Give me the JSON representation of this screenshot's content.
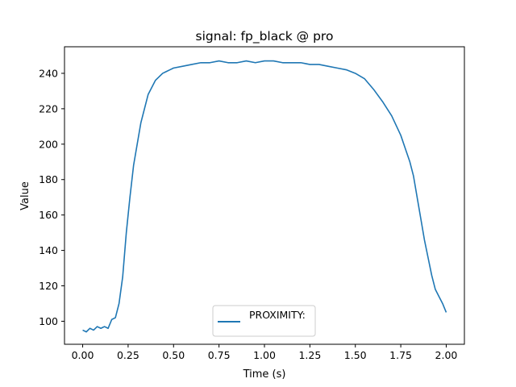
{
  "chart_data": {
    "type": "line",
    "title": "signal: fp_black @ pro",
    "xlabel": "Time (s)",
    "ylabel": "Value",
    "xlim": [
      -0.1,
      2.1
    ],
    "ylim": [
      87,
      255
    ],
    "xticks": [
      "0.00",
      "0.25",
      "0.50",
      "0.75",
      "1.00",
      "1.25",
      "1.50",
      "1.75",
      "2.00"
    ],
    "yticks": [
      "100",
      "120",
      "140",
      "160",
      "180",
      "200",
      "220",
      "240"
    ],
    "grid": false,
    "legend_position": "lower center",
    "series": [
      {
        "name": "PROXIMITY:",
        "color": "#1f77b4",
        "x": [
          0.0,
          0.02,
          0.04,
          0.06,
          0.08,
          0.1,
          0.12,
          0.14,
          0.16,
          0.18,
          0.2,
          0.22,
          0.24,
          0.26,
          0.28,
          0.3,
          0.32,
          0.34,
          0.36,
          0.38,
          0.4,
          0.42,
          0.44,
          0.46,
          0.48,
          0.5,
          0.55,
          0.6,
          0.65,
          0.7,
          0.75,
          0.8,
          0.85,
          0.9,
          0.95,
          1.0,
          1.05,
          1.1,
          1.15,
          1.2,
          1.25,
          1.3,
          1.35,
          1.4,
          1.45,
          1.5,
          1.55,
          1.6,
          1.65,
          1.7,
          1.75,
          1.78,
          1.8,
          1.82,
          1.84,
          1.86,
          1.88,
          1.9,
          1.92,
          1.94,
          1.96,
          1.98,
          2.0
        ],
        "values": [
          95,
          94,
          96,
          95,
          97,
          96,
          97,
          96,
          101,
          102,
          110,
          125,
          150,
          170,
          188,
          200,
          212,
          220,
          228,
          232,
          236,
          238,
          240,
          241,
          242,
          243,
          244,
          245,
          246,
          246,
          247,
          246,
          246,
          247,
          246,
          247,
          247,
          246,
          246,
          246,
          245,
          245,
          244,
          243,
          242,
          240,
          237,
          231,
          224,
          216,
          205,
          196,
          190,
          182,
          170,
          158,
          146,
          136,
          126,
          118,
          114,
          110,
          105
        ]
      }
    ]
  }
}
